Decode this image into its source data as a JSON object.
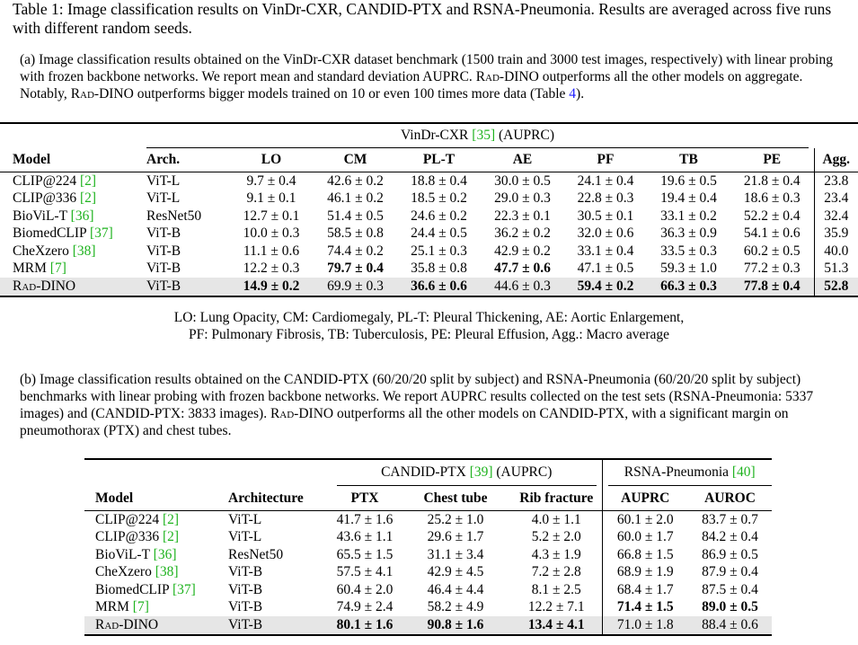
{
  "caption": {
    "label": "Table 1:",
    "text": "Image classification results on VinDr-CXR, CANDID-PTX and RSNA-Pneumonia. Results are averaged across five runs with different random seeds."
  },
  "sub_a": {
    "prefix": "(a) Image classification results obtained on the VinDr-CXR dataset benchmark (1500 train and 3000 test images, respectively) with linear probing with frozen backbone networks. We report mean and standard deviation AUPRC.",
    "rad_dino_1": "Rad-DINO",
    "mid": "outperforms all the other models on aggregate. Notably,",
    "rad_dino_2": "Rad-DINO",
    "suffix": "outperforms bigger models trained on 10 or even 100 times more data (Table",
    "table_ref": "4",
    "end": ")."
  },
  "table_a": {
    "group_header": {
      "name": "VinDr-CXR",
      "ref": "[35]",
      "metric": "(AUPRC)"
    },
    "headers": [
      "Model",
      "Arch.",
      "LO",
      "CM",
      "PL-T",
      "AE",
      "PF",
      "TB",
      "PE",
      "Agg."
    ],
    "rows": [
      {
        "model": "CLIP@224",
        "ref": "[2]",
        "arch": "ViT-L",
        "vals": [
          "9.7 ± 0.4",
          "42.6 ± 0.2",
          "18.8 ± 0.4",
          "30.0 ± 0.5",
          "24.1 ± 0.4",
          "19.6 ± 0.5",
          "21.8 ± 0.4"
        ],
        "agg": "23.8"
      },
      {
        "model": "CLIP@336",
        "ref": "[2]",
        "arch": "ViT-L",
        "vals": [
          "9.1 ± 0.1",
          "46.1 ± 0.2",
          "18.5 ± 0.2",
          "29.0 ± 0.3",
          "22.8 ± 0.3",
          "19.4 ± 0.4",
          "18.6 ± 0.3"
        ],
        "agg": "23.4"
      },
      {
        "model": "BioViL-T",
        "ref": "[36]",
        "arch": "ResNet50",
        "vals": [
          "12.7 ± 0.1",
          "51.4 ± 0.5",
          "24.6 ± 0.2",
          "22.3 ± 0.1",
          "30.5 ± 0.1",
          "33.1 ± 0.2",
          "52.2 ± 0.4"
        ],
        "agg": "32.4"
      },
      {
        "model": "BiomedCLIP",
        "ref": "[37]",
        "arch": "ViT-B",
        "vals": [
          "10.0 ± 0.3",
          "58.5 ± 0.8",
          "24.4 ± 0.5",
          "36.2 ± 0.2",
          "32.0 ± 0.6",
          "36.3 ± 0.9",
          "54.1 ± 0.6"
        ],
        "agg": "35.9"
      },
      {
        "model": "CheXzero",
        "ref": "[38]",
        "arch": "ViT-B",
        "vals": [
          "11.1 ± 0.6",
          "74.4 ± 0.2",
          "25.1 ± 0.3",
          "42.9 ± 0.2",
          "33.1 ± 0.4",
          "33.5 ± 0.3",
          "60.2 ± 0.5"
        ],
        "agg": "40.0"
      },
      {
        "model": "MRM",
        "ref": "[7]",
        "arch": "ViT-B",
        "vals": [
          "12.2 ± 0.3",
          "79.7 ± 0.4",
          "35.8 ± 0.8",
          "47.7 ± 0.6",
          "47.1 ± 0.5",
          "59.3 ± 1.0",
          "77.2 ± 0.3"
        ],
        "agg": "51.3"
      },
      {
        "model": "Rad-DINO",
        "ref": "",
        "arch": "ViT-B",
        "vals": [
          "14.9 ± 0.2",
          "69.9 ± 0.3",
          "36.6 ± 0.6",
          "44.6 ± 0.3",
          "59.4 ± 0.2",
          "66.3 ± 0.3",
          "77.8 ± 0.4"
        ],
        "agg": "52.8"
      }
    ],
    "legend_line1": "LO: Lung Opacity, CM: Cardiomegaly, PL-T: Pleural Thickening, AE: Aortic Enlargement,",
    "legend_line2": "PF: Pulmonary Fibrosis, TB: Tuberculosis, PE: Pleural Effusion, Agg.: Macro average"
  },
  "sub_b": {
    "prefix": "(b) Image classification results obtained on the CANDID-PTX (60/20/20 split by subject) and RSNA-Pneumonia (60/20/20 split by subject) benchmarks with linear probing with frozen backbone networks. We report AUPRC results collected on the test sets (RSNA-Pneumonia: 5337 images) and (CANDID-PTX: 3833 images).",
    "rad_dino": "Rad-DINO",
    "suffix": "outperforms all the other models on CANDID-PTX, with a significant margin on pneumothorax (PTX) and chest tubes."
  },
  "table_b": {
    "group1": {
      "name": "CANDID-PTX",
      "ref": "[39]",
      "metric": "(AUPRC)"
    },
    "group2": {
      "name": "RSNA-Pneumonia",
      "ref": "[40]"
    },
    "headers": [
      "Model",
      "Architecture",
      "PTX",
      "Chest tube",
      "Rib fracture",
      "AUPRC",
      "AUROC"
    ],
    "rows": [
      {
        "model": "CLIP@224",
        "ref": "[2]",
        "arch": "ViT-L",
        "vals": [
          "41.7 ± 1.6",
          "25.2 ± 1.0",
          "4.0 ± 1.1",
          "60.1 ± 2.0",
          "83.7 ± 0.7"
        ]
      },
      {
        "model": "CLIP@336",
        "ref": "[2]",
        "arch": "ViT-L",
        "vals": [
          "43.6 ± 1.1",
          "29.6 ± 1.7",
          "5.2 ± 2.0",
          "60.0 ± 1.7",
          "84.2 ± 0.4"
        ]
      },
      {
        "model": "BioViL-T",
        "ref": "[36]",
        "arch": "ResNet50",
        "vals": [
          "65.5 ± 1.5",
          "31.1 ± 3.4",
          "4.3 ± 1.9",
          "66.8 ± 1.5",
          "86.9 ± 0.5"
        ]
      },
      {
        "model": "CheXzero",
        "ref": "[38]",
        "arch": "ViT-B",
        "vals": [
          "57.5 ± 4.1",
          "42.9 ± 4.5",
          "7.2 ± 2.8",
          "68.9 ± 1.9",
          "87.9 ± 0.4"
        ]
      },
      {
        "model": "BiomedCLIP",
        "ref": "[37]",
        "arch": "ViT-B",
        "vals": [
          "60.4 ± 2.0",
          "46.4 ± 4.4",
          "8.1 ± 2.5",
          "68.4 ± 1.7",
          "87.5 ± 0.4"
        ]
      },
      {
        "model": "MRM",
        "ref": "[7]",
        "arch": "ViT-B",
        "vals": [
          "74.9 ± 2.4",
          "58.2 ± 4.9",
          "12.2 ± 7.1",
          "71.4 ± 1.5",
          "89.0 ± 0.5"
        ]
      },
      {
        "model": "Rad-DINO",
        "ref": "",
        "arch": "ViT-B",
        "vals": [
          "80.1 ± 1.6",
          "90.8 ± 1.6",
          "13.4 ± 4.1",
          "71.0 ± 1.8",
          "88.4 ± 0.6"
        ]
      }
    ]
  }
}
